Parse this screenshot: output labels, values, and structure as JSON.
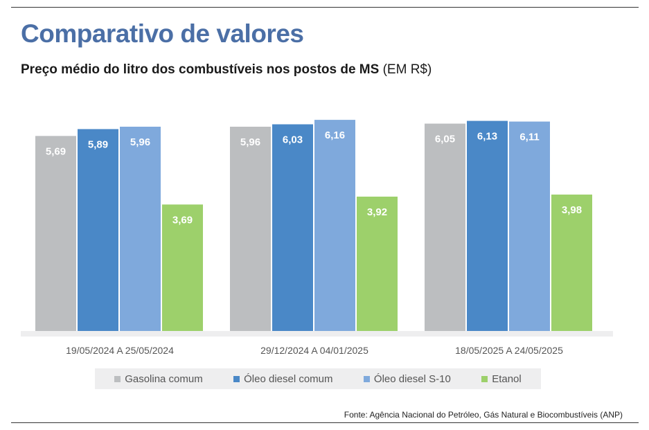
{
  "header": {
    "title": "Comparativo de valores",
    "subtitle_main": "Preço médio do litro dos combustíveis nos postos de MS",
    "subtitle_unit": "(EM R$)"
  },
  "source": "Fonte: Agência Nacional do Petróleo, Gás Natural e Biocombustíveis (ANP)",
  "chart_data": {
    "type": "bar",
    "title": "Preço médio do litro dos combustíveis nos postos de MS",
    "ylabel": "",
    "ylim": [
      0,
      6.5
    ],
    "grid": false,
    "legend_position": "bottom",
    "categories": [
      "19/05/2024 A 25/05/2024",
      "29/12/2024 A 04/01/2025",
      "18/05/2025 A 24/05/2025"
    ],
    "series": [
      {
        "name": "Gasolina comum",
        "color": "#bcbec0",
        "values": [
          5.69,
          5.96,
          6.05
        ],
        "labels": [
          "5,69",
          "5,96",
          "6,05"
        ]
      },
      {
        "name": "Óleo diesel comum",
        "color": "#4a88c7",
        "values": [
          5.89,
          6.03,
          6.13
        ],
        "labels": [
          "5,89",
          "6,03",
          "6,13"
        ]
      },
      {
        "name": "Óleo diesel S-10",
        "color": "#7fa9dc",
        "values": [
          5.96,
          6.16,
          6.11
        ],
        "labels": [
          "5,96",
          "6,16",
          "6,11"
        ]
      },
      {
        "name": "Etanol",
        "color": "#9dd06b",
        "values": [
          3.69,
          3.92,
          3.98
        ],
        "labels": [
          "3,69",
          "3,92",
          "3,98"
        ]
      }
    ]
  }
}
